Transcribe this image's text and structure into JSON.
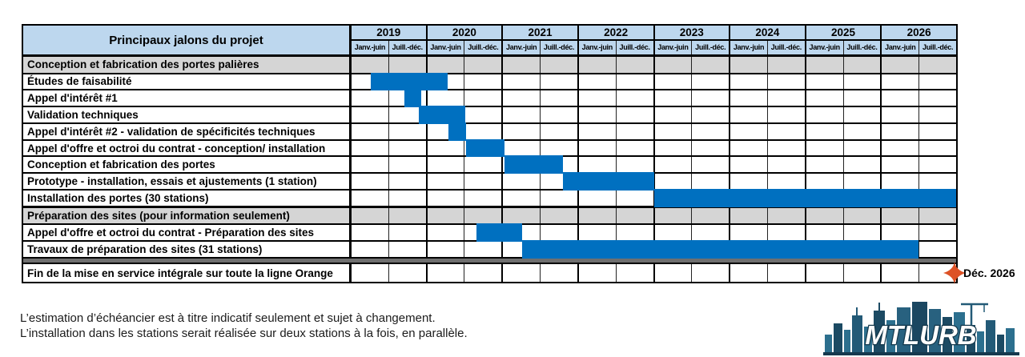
{
  "table": {
    "title": "Principaux jalons du projet",
    "years": [
      "2019",
      "2020",
      "2021",
      "2022",
      "2023",
      "2024",
      "2025",
      "2026"
    ],
    "half_labels": [
      "Janv.-juin",
      "Juill.-déc."
    ],
    "rows": [
      {
        "type": "section",
        "label": "Conception et fabrication des portes palières"
      },
      {
        "type": "task",
        "label": "Études de faisabilité",
        "bar": {
          "start": 0.5,
          "end": 2.55
        }
      },
      {
        "type": "task",
        "label": "Appel d'intérêt #1",
        "bar": {
          "start": 1.39,
          "end": 1.84
        }
      },
      {
        "type": "task",
        "label": "Validation techniques",
        "bar": {
          "start": 1.79,
          "end": 3.02
        }
      },
      {
        "type": "task",
        "label": "Appel d'intérêt #2 - validation de spécificités techniques",
        "bar": {
          "start": 2.57,
          "end": 3.02
        }
      },
      {
        "type": "task",
        "label": "Appel d'offre et octroi du contrat - conception/ installation",
        "bar": {
          "start": 3.02,
          "end": 4.05
        }
      },
      {
        "type": "task",
        "label": "Conception et fabrication des portes",
        "bar": {
          "start": 4.05,
          "end": 5.6
        }
      },
      {
        "type": "task",
        "label": "Prototype - installation, essais et ajustements (1 station)",
        "bar": {
          "start": 5.6,
          "end": 8.0
        }
      },
      {
        "type": "task",
        "label": "Installation des portes (30 stations)",
        "bar": {
          "start": 8.0,
          "end": 16.0
        }
      },
      {
        "type": "section",
        "label": "Préparation des sites (pour information seulement)"
      },
      {
        "type": "task",
        "label": "Appel d'offre et octroi du contrat - Préparation des sites",
        "bar": {
          "start": 3.3,
          "end": 4.51
        }
      },
      {
        "type": "task",
        "label": "Travaux de préparation des sites (31 stations)",
        "bar": {
          "start": 4.51,
          "end": 15.0
        }
      },
      {
        "type": "separator"
      },
      {
        "type": "milestone",
        "label": "Fin de la mise en service intégrale sur toute la ligne Orange",
        "milestone": {
          "position": 15.95,
          "label": "Déc. 2026"
        }
      }
    ]
  },
  "footnotes": [
    "L’estimation d’échéancier est à titre indicatif seulement et sujet à changement.",
    "L’installation dans les stations serait réalisée sur deux stations à la fois, en parallèle."
  ],
  "logo": {
    "text": "MTLURB"
  },
  "colors": {
    "bar_blue": "#0070C0",
    "header_blue": "#BDD7EE",
    "section_gray": "#D5D5D5",
    "separator_gray": "#6F6F6F",
    "milestone_red": "#DD5226",
    "logo_navy": "#16425B"
  },
  "chart_data": {
    "type": "gantt",
    "title": "Principaux jalons du projet",
    "x_axis": {
      "years": [
        2019,
        2020,
        2021,
        2022,
        2023,
        2024,
        2025,
        2026
      ],
      "subdivisions_per_year": [
        "Janv.-juin",
        "Juill.-déc."
      ],
      "range": [
        "janv. 2019",
        "déc. 2026"
      ]
    },
    "sections": [
      "Conception et fabrication des portes palières",
      "Préparation des sites (pour information seulement)"
    ],
    "tasks": [
      {
        "name": "Études de faisabilité",
        "start": 2019.25,
        "end": 2020.27
      },
      {
        "name": "Appel d'intérêt #1",
        "start": 2019.7,
        "end": 2019.92
      },
      {
        "name": "Validation techniques",
        "start": 2019.9,
        "end": 2020.51
      },
      {
        "name": "Appel d'intérêt #2 - validation de spécificités techniques",
        "start": 2020.29,
        "end": 2020.51
      },
      {
        "name": "Appel d'offre et octroi du contrat - conception/ installation",
        "start": 2020.51,
        "end": 2021.02
      },
      {
        "name": "Conception et fabrication des portes",
        "start": 2021.02,
        "end": 2021.8
      },
      {
        "name": "Prototype - installation, essais et ajustements (1 station)",
        "start": 2021.8,
        "end": 2023.0
      },
      {
        "name": "Installation des portes (30 stations)",
        "start": 2023.0,
        "end": 2027.0
      },
      {
        "name": "Appel d'offre et octroi du contrat - Préparation des sites",
        "start": 2020.65,
        "end": 2021.26
      },
      {
        "name": "Travaux de préparation des sites (31 stations)",
        "start": 2021.26,
        "end": 2026.5
      }
    ],
    "milestone": {
      "name": "Fin de la mise en service intégrale sur toute la ligne Orange",
      "date": "Déc. 2026"
    },
    "legend": "none",
    "grid": true
  }
}
